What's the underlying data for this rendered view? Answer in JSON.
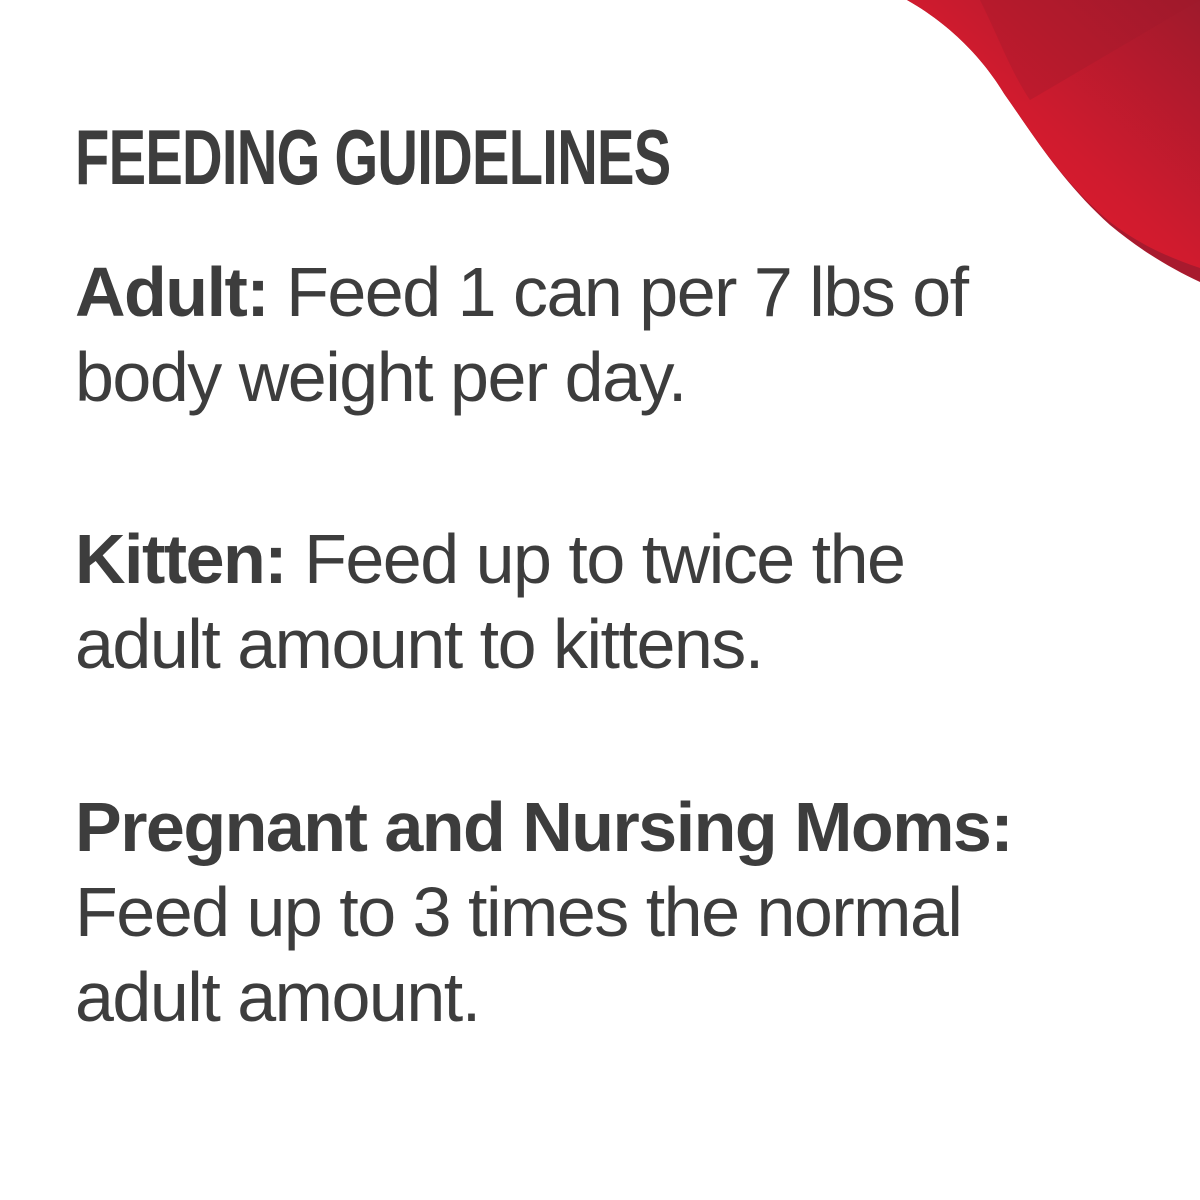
{
  "title": "FEEDING GUIDELINES",
  "colors": {
    "text": "#3d3d3d",
    "accent_red": "#e8192c",
    "accent_dark_red": "#a81a2e"
  },
  "sections": [
    {
      "label": "Adult:",
      "lines": [
        "Feed 1 can per 7 lbs of",
        "body weight per day."
      ]
    },
    {
      "label": "Kitten:",
      "lines": [
        "Feed up to twice the",
        "adult amount to kittens."
      ]
    },
    {
      "label": "Pregnant and Nursing Moms:",
      "lines": [
        "Feed up to 3 times the normal",
        "adult amount."
      ]
    }
  ]
}
